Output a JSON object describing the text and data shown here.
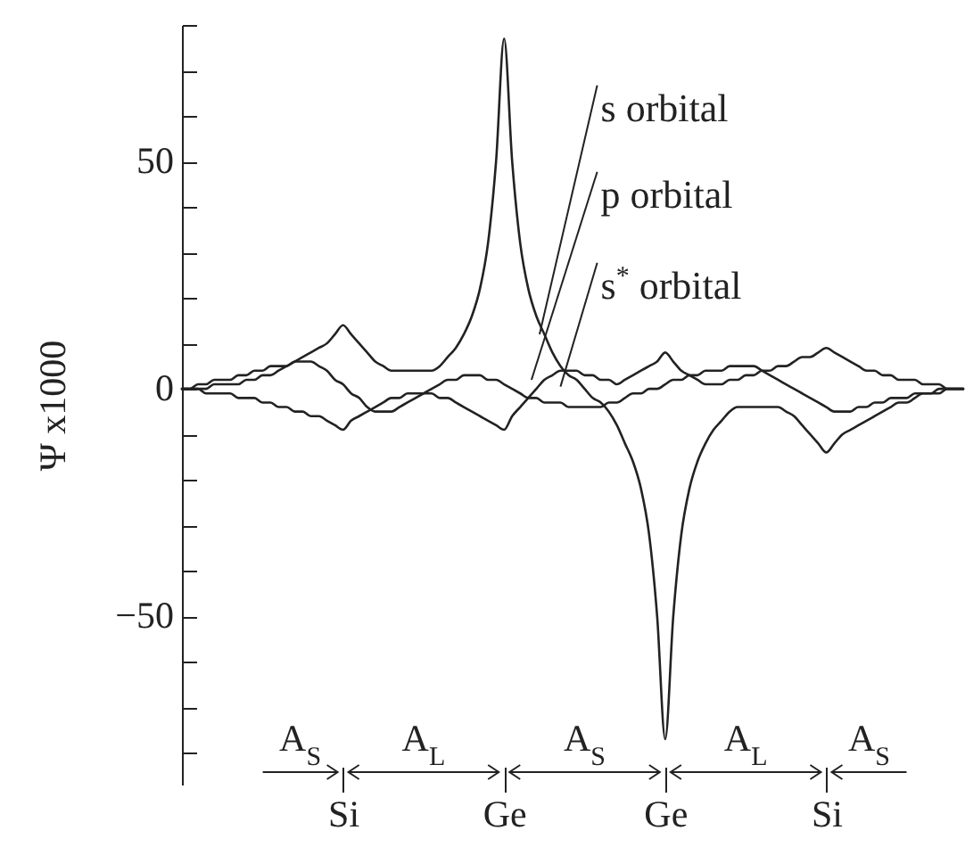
{
  "chart_data": {
    "type": "line",
    "ylabel": "Ψ x1000",
    "categories": [
      null,
      null,
      null,
      null,
      null,
      null,
      null,
      null,
      null,
      null,
      null,
      null,
      null,
      null,
      null,
      null,
      null,
      null,
      null,
      null,
      "Si",
      null,
      null,
      null,
      null,
      null,
      null,
      null,
      null,
      null,
      null,
      null,
      null,
      null,
      null,
      null,
      null,
      null,
      null,
      null,
      "Ge",
      null,
      null,
      null,
      null,
      null,
      null,
      null,
      null,
      null,
      null,
      null,
      null,
      null,
      null,
      null,
      null,
      null,
      null,
      null,
      "Ge",
      null,
      null,
      null,
      null,
      null,
      null,
      null,
      null,
      null,
      null,
      null,
      null,
      null,
      null,
      null,
      null,
      null,
      null,
      null,
      "Si",
      null,
      null,
      null,
      null,
      null,
      null,
      null,
      null,
      null,
      null,
      null,
      null,
      null,
      null,
      null,
      null,
      null
    ],
    "ylim": [
      -87,
      80
    ],
    "yticks": [
      {
        "value": -80,
        "label": null
      },
      {
        "value": -70,
        "label": null
      },
      {
        "value": -60,
        "label": null
      },
      -50,
      {
        "value": -40,
        "label": null
      },
      {
        "value": -30,
        "label": null
      },
      {
        "value": -20,
        "label": null
      },
      {
        "value": -10,
        "label": null
      },
      0,
      {
        "value": 10,
        "label": null
      },
      {
        "value": 20,
        "label": null
      },
      {
        "value": 30,
        "label": null
      },
      {
        "value": 40,
        "label": null
      },
      50,
      {
        "value": 60,
        "label": null
      },
      {
        "value": 70,
        "label": null
      },
      {
        "value": 80,
        "label": null
      }
    ],
    "grid": false,
    "line_style": "solid",
    "series": [
      {
        "name": "s orbital",
        "color": "#222222",
        "values": [
          0,
          0,
          0,
          0,
          1,
          1,
          1,
          1,
          2,
          2,
          3,
          3,
          4,
          5,
          6,
          7,
          8,
          9,
          10,
          12,
          14,
          12,
          10,
          8,
          6,
          5,
          4,
          4,
          4,
          4,
          4,
          4,
          5,
          7,
          9,
          12,
          16,
          22,
          32,
          50,
          77,
          50,
          32,
          22,
          16,
          12,
          8,
          5,
          3,
          2,
          0,
          -2,
          -3,
          -5,
          -8,
          -12,
          -16,
          -22,
          -32,
          -50,
          -77,
          -50,
          -32,
          -22,
          -16,
          -12,
          -9,
          -7,
          -5,
          -4,
          -4,
          -4,
          -4,
          -4,
          -4,
          -5,
          -6,
          -8,
          -10,
          -12,
          -14,
          -12,
          -10,
          -9,
          -8,
          -7,
          -6,
          -5,
          -4,
          -3,
          -3,
          -2,
          -1,
          -1,
          -1,
          0,
          0,
          0
        ]
      },
      {
        "name": "p orbital",
        "color": "#222222",
        "values": [
          0,
          0,
          0,
          -1,
          -1,
          -1,
          -1,
          -2,
          -2,
          -2,
          -3,
          -3,
          -4,
          -4,
          -5,
          -5,
          -6,
          -6,
          -7,
          -8,
          -9,
          -7,
          -6,
          -5,
          -4,
          -3,
          -2,
          -2,
          -1,
          -1,
          -1,
          -1,
          -2,
          -2,
          -3,
          -4,
          -5,
          -6,
          -7,
          -8,
          -9,
          -6,
          -4,
          -2,
          0,
          2,
          3,
          4,
          4,
          4,
          3,
          3,
          2,
          2,
          1,
          2,
          3,
          4,
          5,
          6,
          8,
          6,
          4,
          3,
          2,
          1,
          1,
          1,
          2,
          2,
          3,
          3,
          4,
          4,
          5,
          5,
          6,
          7,
          7,
          8,
          9,
          8,
          7,
          6,
          5,
          4,
          4,
          3,
          3,
          2,
          2,
          2,
          1,
          1,
          1,
          0,
          0,
          0
        ]
      },
      {
        "name": "s$^{*}$ orbital",
        "color": "#222222",
        "values": [
          0,
          0,
          1,
          1,
          2,
          2,
          2,
          3,
          3,
          4,
          4,
          5,
          5,
          5,
          6,
          6,
          6,
          5,
          4,
          2,
          1,
          -1,
          -2,
          -4,
          -5,
          -5,
          -5,
          -4,
          -3,
          -2,
          -1,
          0,
          1,
          2,
          2,
          3,
          3,
          3,
          2,
          2,
          1,
          0,
          -1,
          -2,
          -2,
          -3,
          -3,
          -3,
          -4,
          -4,
          -4,
          -4,
          -4,
          -3,
          -3,
          -2,
          -1,
          -1,
          0,
          0,
          1,
          2,
          2,
          3,
          3,
          4,
          4,
          4,
          5,
          5,
          5,
          5,
          4,
          3,
          2,
          1,
          0,
          -1,
          -2,
          -3,
          -4,
          -5,
          -5,
          -5,
          -4,
          -4,
          -3,
          -3,
          -2,
          -2,
          -2,
          -1,
          -1,
          -1,
          0,
          0,
          0,
          0
        ]
      }
    ],
    "annotations": [
      "A$_{S}$",
      "A$_{L}$",
      "A$_{S}$",
      "A$_{L}$",
      "A$_{S}$"
    ]
  }
}
